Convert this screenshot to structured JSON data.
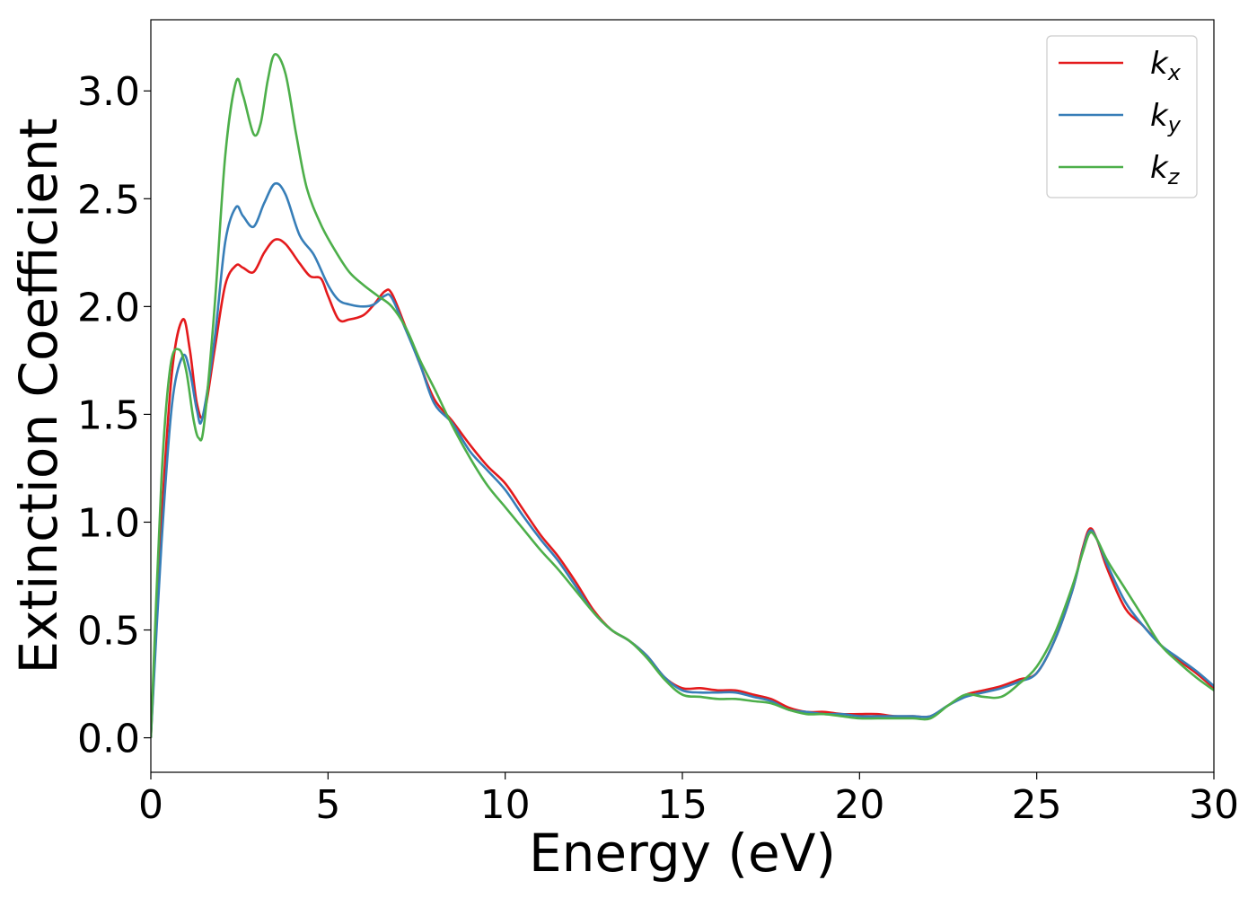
{
  "chart_data": {
    "type": "line",
    "xlabel": "Energy (eV)",
    "ylabel": "Extinction Coefficient",
    "xlim": [
      0,
      30
    ],
    "ylim": [
      -0.16,
      3.33
    ],
    "xticks": [
      0,
      5,
      10,
      15,
      20,
      25,
      30
    ],
    "xtick_labels": [
      "0",
      "5",
      "10",
      "15",
      "20",
      "25",
      "30"
    ],
    "yticks": [
      0.0,
      0.5,
      1.0,
      1.5,
      2.0,
      2.5,
      3.0
    ],
    "ytick_labels": [
      "0.0",
      "0.5",
      "1.0",
      "1.5",
      "2.0",
      "2.5",
      "3.0"
    ],
    "grid": false,
    "legend_position": "top-right",
    "series": [
      {
        "name": "k",
        "subscript": "x",
        "color": "#e41a1c",
        "points": [
          [
            0,
            0.0
          ],
          [
            0.3,
            1.0
          ],
          [
            0.6,
            1.7
          ],
          [
            0.9,
            1.94
          ],
          [
            1.1,
            1.8
          ],
          [
            1.3,
            1.55
          ],
          [
            1.5,
            1.5
          ],
          [
            1.8,
            1.8
          ],
          [
            2.1,
            2.1
          ],
          [
            2.4,
            2.19
          ],
          [
            2.6,
            2.18
          ],
          [
            2.9,
            2.16
          ],
          [
            3.2,
            2.25
          ],
          [
            3.5,
            2.31
          ],
          [
            3.8,
            2.29
          ],
          [
            4.2,
            2.2
          ],
          [
            4.5,
            2.14
          ],
          [
            4.8,
            2.13
          ],
          [
            5.0,
            2.05
          ],
          [
            5.3,
            1.94
          ],
          [
            5.6,
            1.94
          ],
          [
            6.0,
            1.96
          ],
          [
            6.3,
            2.01
          ],
          [
            6.6,
            2.07
          ],
          [
            6.8,
            2.06
          ],
          [
            7.2,
            1.9
          ],
          [
            7.6,
            1.73
          ],
          [
            8.0,
            1.57
          ],
          [
            8.5,
            1.47
          ],
          [
            9.0,
            1.36
          ],
          [
            9.5,
            1.26
          ],
          [
            10.0,
            1.18
          ],
          [
            10.5,
            1.06
          ],
          [
            11.0,
            0.94
          ],
          [
            11.5,
            0.84
          ],
          [
            12.0,
            0.72
          ],
          [
            12.5,
            0.59
          ],
          [
            13.0,
            0.5
          ],
          [
            13.5,
            0.45
          ],
          [
            14.0,
            0.38
          ],
          [
            14.5,
            0.28
          ],
          [
            15.0,
            0.23
          ],
          [
            15.5,
            0.23
          ],
          [
            16.0,
            0.22
          ],
          [
            16.5,
            0.22
          ],
          [
            17.0,
            0.2
          ],
          [
            17.5,
            0.18
          ],
          [
            18.0,
            0.14
          ],
          [
            18.5,
            0.12
          ],
          [
            19.0,
            0.12
          ],
          [
            19.5,
            0.11
          ],
          [
            20.0,
            0.11
          ],
          [
            20.5,
            0.11
          ],
          [
            21.0,
            0.1
          ],
          [
            21.5,
            0.1
          ],
          [
            22.0,
            0.1
          ],
          [
            22.5,
            0.15
          ],
          [
            23.0,
            0.2
          ],
          [
            23.5,
            0.22
          ],
          [
            24.0,
            0.24
          ],
          [
            24.5,
            0.27
          ],
          [
            25.0,
            0.3
          ],
          [
            25.5,
            0.45
          ],
          [
            26.0,
            0.68
          ],
          [
            26.3,
            0.88
          ],
          [
            26.5,
            0.97
          ],
          [
            26.7,
            0.92
          ],
          [
            27.0,
            0.78
          ],
          [
            27.5,
            0.6
          ],
          [
            28.0,
            0.52
          ],
          [
            28.5,
            0.43
          ],
          [
            29.0,
            0.36
          ],
          [
            29.5,
            0.3
          ],
          [
            30.0,
            0.23
          ]
        ]
      },
      {
        "name": "k",
        "subscript": "y",
        "color": "#377eb8",
        "points": [
          [
            0,
            0.0
          ],
          [
            0.3,
            0.9
          ],
          [
            0.6,
            1.55
          ],
          [
            0.9,
            1.77
          ],
          [
            1.1,
            1.7
          ],
          [
            1.3,
            1.52
          ],
          [
            1.45,
            1.48
          ],
          [
            1.8,
            1.85
          ],
          [
            2.1,
            2.3
          ],
          [
            2.4,
            2.46
          ],
          [
            2.6,
            2.42
          ],
          [
            2.9,
            2.37
          ],
          [
            3.2,
            2.48
          ],
          [
            3.5,
            2.57
          ],
          [
            3.8,
            2.52
          ],
          [
            4.2,
            2.33
          ],
          [
            4.6,
            2.24
          ],
          [
            5.0,
            2.1
          ],
          [
            5.3,
            2.03
          ],
          [
            5.6,
            2.01
          ],
          [
            6.0,
            2.0
          ],
          [
            6.3,
            2.01
          ],
          [
            6.6,
            2.05
          ],
          [
            6.8,
            2.04
          ],
          [
            7.2,
            1.89
          ],
          [
            7.6,
            1.73
          ],
          [
            8.0,
            1.55
          ],
          [
            8.5,
            1.46
          ],
          [
            9.0,
            1.33
          ],
          [
            9.5,
            1.24
          ],
          [
            10.0,
            1.15
          ],
          [
            10.5,
            1.03
          ],
          [
            11.0,
            0.92
          ],
          [
            11.5,
            0.82
          ],
          [
            12.0,
            0.7
          ],
          [
            12.5,
            0.58
          ],
          [
            13.0,
            0.5
          ],
          [
            13.5,
            0.45
          ],
          [
            14.0,
            0.38
          ],
          [
            14.5,
            0.28
          ],
          [
            15.0,
            0.22
          ],
          [
            15.5,
            0.21
          ],
          [
            16.0,
            0.21
          ],
          [
            16.5,
            0.21
          ],
          [
            17.0,
            0.19
          ],
          [
            17.5,
            0.17
          ],
          [
            18.0,
            0.13
          ],
          [
            18.5,
            0.12
          ],
          [
            19.0,
            0.11
          ],
          [
            19.5,
            0.11
          ],
          [
            20.0,
            0.1
          ],
          [
            20.5,
            0.1
          ],
          [
            21.0,
            0.1
          ],
          [
            21.5,
            0.1
          ],
          [
            22.0,
            0.1
          ],
          [
            22.5,
            0.15
          ],
          [
            23.0,
            0.19
          ],
          [
            23.5,
            0.21
          ],
          [
            24.0,
            0.23
          ],
          [
            24.5,
            0.26
          ],
          [
            25.0,
            0.3
          ],
          [
            25.5,
            0.45
          ],
          [
            26.0,
            0.68
          ],
          [
            26.3,
            0.87
          ],
          [
            26.5,
            0.96
          ],
          [
            26.7,
            0.92
          ],
          [
            27.0,
            0.8
          ],
          [
            27.5,
            0.63
          ],
          [
            28.0,
            0.52
          ],
          [
            28.5,
            0.43
          ],
          [
            29.0,
            0.37
          ],
          [
            29.5,
            0.31
          ],
          [
            30.0,
            0.24
          ]
        ]
      },
      {
        "name": "k",
        "subscript": "z",
        "color": "#4daf4a",
        "points": [
          [
            0,
            0.0
          ],
          [
            0.3,
            1.2
          ],
          [
            0.55,
            1.72
          ],
          [
            0.8,
            1.8
          ],
          [
            1.0,
            1.7
          ],
          [
            1.2,
            1.48
          ],
          [
            1.35,
            1.39
          ],
          [
            1.5,
            1.45
          ],
          [
            1.8,
            2.0
          ],
          [
            2.1,
            2.7
          ],
          [
            2.4,
            3.04
          ],
          [
            2.6,
            2.98
          ],
          [
            2.9,
            2.8
          ],
          [
            3.1,
            2.85
          ],
          [
            3.3,
            3.05
          ],
          [
            3.5,
            3.17
          ],
          [
            3.8,
            3.08
          ],
          [
            4.1,
            2.8
          ],
          [
            4.4,
            2.55
          ],
          [
            4.8,
            2.38
          ],
          [
            5.2,
            2.26
          ],
          [
            5.6,
            2.16
          ],
          [
            6.0,
            2.1
          ],
          [
            6.4,
            2.05
          ],
          [
            6.8,
            2.0
          ],
          [
            7.2,
            1.9
          ],
          [
            7.6,
            1.75
          ],
          [
            8.0,
            1.62
          ],
          [
            8.5,
            1.45
          ],
          [
            9.0,
            1.3
          ],
          [
            9.5,
            1.17
          ],
          [
            10.0,
            1.07
          ],
          [
            10.5,
            0.97
          ],
          [
            11.0,
            0.87
          ],
          [
            11.5,
            0.78
          ],
          [
            12.0,
            0.68
          ],
          [
            12.5,
            0.58
          ],
          [
            13.0,
            0.5
          ],
          [
            13.5,
            0.45
          ],
          [
            14.0,
            0.37
          ],
          [
            14.5,
            0.27
          ],
          [
            15.0,
            0.2
          ],
          [
            15.5,
            0.19
          ],
          [
            16.0,
            0.18
          ],
          [
            16.5,
            0.18
          ],
          [
            17.0,
            0.17
          ],
          [
            17.5,
            0.16
          ],
          [
            18.0,
            0.13
          ],
          [
            18.5,
            0.11
          ],
          [
            19.0,
            0.11
          ],
          [
            19.5,
            0.1
          ],
          [
            20.0,
            0.09
          ],
          [
            20.5,
            0.09
          ],
          [
            21.0,
            0.09
          ],
          [
            21.5,
            0.09
          ],
          [
            22.0,
            0.09
          ],
          [
            22.5,
            0.15
          ],
          [
            23.0,
            0.2
          ],
          [
            23.5,
            0.19
          ],
          [
            24.0,
            0.19
          ],
          [
            24.5,
            0.25
          ],
          [
            25.0,
            0.33
          ],
          [
            25.5,
            0.48
          ],
          [
            26.0,
            0.7
          ],
          [
            26.3,
            0.86
          ],
          [
            26.5,
            0.95
          ],
          [
            26.7,
            0.92
          ],
          [
            27.0,
            0.82
          ],
          [
            27.5,
            0.69
          ],
          [
            28.0,
            0.56
          ],
          [
            28.5,
            0.43
          ],
          [
            29.0,
            0.35
          ],
          [
            29.5,
            0.28
          ],
          [
            30.0,
            0.22
          ]
        ]
      }
    ]
  }
}
